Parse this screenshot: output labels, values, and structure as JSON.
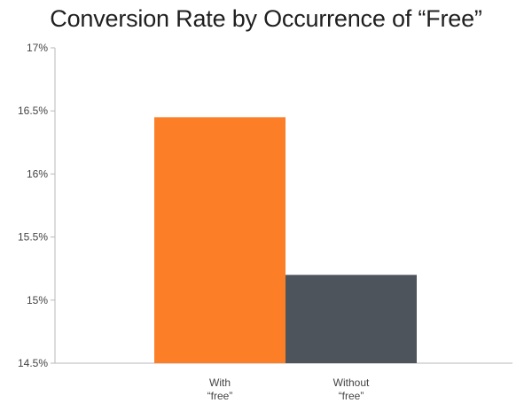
{
  "chart_data": {
    "type": "bar",
    "title": "Conversion Rate by Occurrence of “Free”",
    "xlabel": "",
    "ylabel": "",
    "categories": [
      [
        "With",
        "“free”"
      ],
      [
        "Without",
        "“free”"
      ]
    ],
    "values": [
      16.45,
      15.2
    ],
    "unit": "%",
    "ylim": [
      14.5,
      17
    ],
    "yticks": [
      14.5,
      15,
      15.5,
      16,
      16.5,
      17
    ],
    "ytick_labels": [
      "14.5%",
      "15%",
      "15.5%",
      "16%",
      "16.5%",
      "17%"
    ],
    "colors": [
      "#fc7f27",
      "#4d545c"
    ],
    "grid": false,
    "legend": "none"
  }
}
